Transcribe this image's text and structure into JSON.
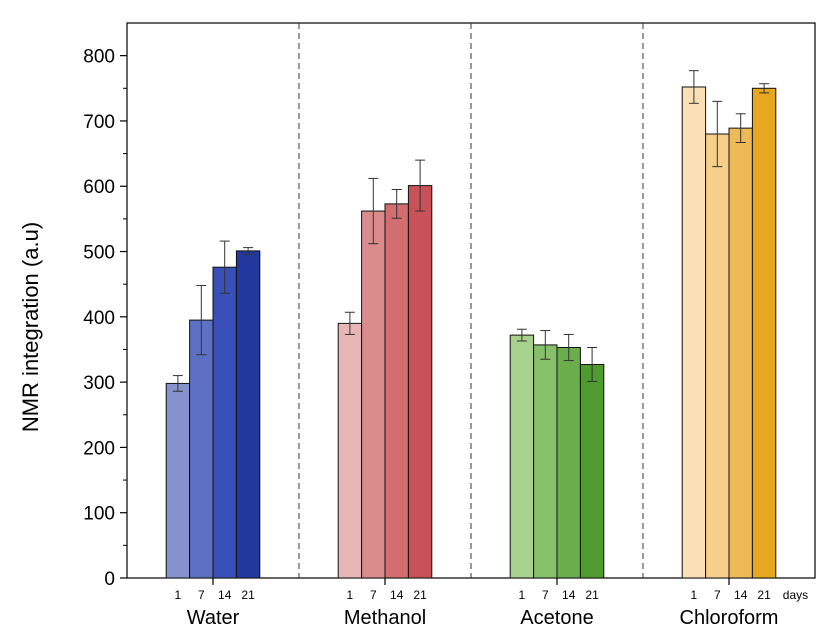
{
  "chart_data": {
    "type": "bar",
    "ylabel": "NMR integration (a.u)",
    "xlabel": "",
    "ylim": [
      0,
      850
    ],
    "yticks": [
      0,
      100,
      200,
      300,
      400,
      500,
      600,
      700,
      800
    ],
    "days": [
      "1",
      "7",
      "14",
      "21"
    ],
    "days_unit": "days",
    "grid": false,
    "groups": [
      {
        "name": "Water",
        "values": [
          298,
          395,
          476,
          501
        ],
        "errors": [
          12,
          53,
          40,
          5
        ],
        "colors": [
          "#8592cd",
          "#5e70c4",
          "#3a50b9",
          "#22389f"
        ]
      },
      {
        "name": "Methanol",
        "values": [
          390,
          562,
          573,
          601
        ],
        "errors": [
          17,
          50,
          22,
          39
        ],
        "colors": [
          "#e8b6b6",
          "#da8c8d",
          "#d26d70",
          "#c85258"
        ]
      },
      {
        "name": "Acetone",
        "values": [
          372,
          357,
          353,
          327
        ],
        "errors": [
          9,
          22,
          20,
          26
        ],
        "colors": [
          "#a9d18e",
          "#86c06a",
          "#6aae4b",
          "#4f9b30"
        ]
      },
      {
        "name": "Chloroform",
        "values": [
          752,
          680,
          689,
          750
        ],
        "errors": [
          25,
          50,
          22,
          7
        ],
        "colors": [
          "#fbe0b6",
          "#f6cf8a",
          "#eeba58",
          "#e6a721"
        ]
      }
    ]
  }
}
